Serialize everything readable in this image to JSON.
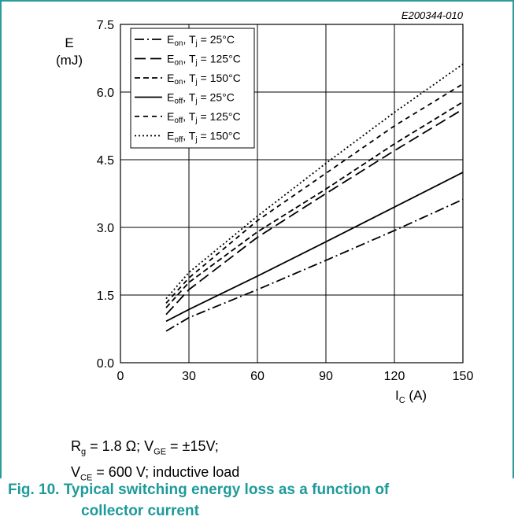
{
  "chart_data": {
    "type": "line",
    "code": "E200344-010",
    "ylabel": {
      "symbol": "E",
      "unit": "(mJ)"
    },
    "xlabel": {
      "symbol": "I",
      "sub": "C",
      "unit": " (A)"
    },
    "xlim": [
      0,
      150
    ],
    "ylim": [
      0,
      7.5
    ],
    "xticks": [
      0,
      30,
      60,
      90,
      120,
      150
    ],
    "yticks": [
      0.0,
      1.5,
      3.0,
      4.5,
      6.0,
      7.5
    ],
    "xtick_labels": [
      "0",
      "30",
      "60",
      "90",
      "120",
      "150"
    ],
    "ytick_labels": [
      "0.0",
      "1.5",
      "3.0",
      "4.5",
      "6.0",
      "7.5"
    ],
    "grid": true,
    "legend_position": "top-left",
    "series": [
      {
        "sym": "E",
        "sub": "on",
        "cond": ", T",
        "csub": "j",
        "temp": " = 25°C",
        "dash": "12,4,2,4",
        "x": [
          20,
          30,
          60,
          90,
          120,
          150
        ],
        "y": [
          0.7,
          1.0,
          1.62,
          2.27,
          2.93,
          3.62
        ]
      },
      {
        "sym": "E",
        "sub": "on",
        "cond": ", T",
        "csub": "j",
        "temp": " = 125°C",
        "dash": "14,6",
        "x": [
          20,
          30,
          60,
          90,
          120,
          150
        ],
        "y": [
          1.07,
          1.62,
          2.78,
          3.75,
          4.7,
          5.62
        ]
      },
      {
        "sym": "E",
        "sub": "on",
        "cond": ", T",
        "csub": "j",
        "temp": " = 150°C",
        "dash": "7,4",
        "x": [
          20,
          30,
          60,
          90,
          120,
          150
        ],
        "y": [
          1.22,
          1.78,
          2.9,
          3.85,
          4.85,
          5.78
        ]
      },
      {
        "sym": "E",
        "sub": "off",
        "cond": ", T",
        "csub": "j",
        "temp": " = 25°C",
        "dash": "",
        "x": [
          20,
          30,
          60,
          90,
          120,
          150
        ],
        "y": [
          0.92,
          1.18,
          1.92,
          2.68,
          3.45,
          4.22
        ]
      },
      {
        "sym": "E",
        "sub": "off",
        "cond": ", T",
        "csub": "j",
        "temp": " = 125°C",
        "dash": "6,5",
        "x": [
          20,
          30,
          60,
          90,
          120,
          150
        ],
        "y": [
          1.32,
          1.88,
          3.15,
          4.2,
          5.25,
          6.18
        ]
      },
      {
        "sym": "E",
        "sub": "off",
        "cond": ", T",
        "csub": "j",
        "temp": " = 150°C",
        "dash": "2,3",
        "x": [
          20,
          30,
          60,
          90,
          120,
          150
        ],
        "y": [
          1.42,
          2.0,
          3.25,
          4.42,
          5.55,
          6.62
        ]
      }
    ]
  },
  "conditions": {
    "line1": {
      "r": "R",
      "rsub": "g",
      "rval": " = 1.8 Ω; V",
      "vsub": "GE",
      "vval": " = ±15V;"
    },
    "line2": {
      "v": "V",
      "vsub": "CE",
      "vval": " = 600 V; inductive load"
    }
  },
  "caption": {
    "line1": "Fig. 10. Typical switching energy loss as a function of",
    "line2": "collector current"
  }
}
